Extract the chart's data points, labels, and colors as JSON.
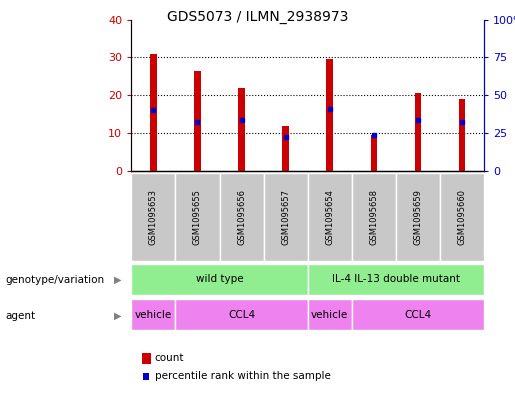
{
  "title": "GDS5073 / ILMN_2938973",
  "samples": [
    "GSM1095653",
    "GSM1095655",
    "GSM1095656",
    "GSM1095657",
    "GSM1095654",
    "GSM1095658",
    "GSM1095659",
    "GSM1095660"
  ],
  "counts": [
    31,
    26.5,
    22,
    12,
    29.5,
    9.5,
    20.5,
    19
  ],
  "percentiles": [
    16,
    13,
    13.5,
    9,
    16.5,
    9.5,
    13.5,
    13
  ],
  "count_color": "#cc0000",
  "percentile_color": "#0000cc",
  "ylim_left": [
    0,
    40
  ],
  "ylim_right": [
    0,
    100
  ],
  "yticks_left": [
    0,
    10,
    20,
    30,
    40
  ],
  "yticks_right": [
    0,
    25,
    50,
    75,
    100
  ],
  "ytick_labels_right": [
    "0",
    "25",
    "50",
    "75",
    "100%"
  ],
  "bar_width": 0.15,
  "legend_count_label": "count",
  "legend_percentile_label": "percentile rank within the sample",
  "genotype_label": "genotype/variation",
  "agent_label": "agent",
  "sample_bg_color": "#c8c8c8",
  "genotype_color": "#90ee90",
  "agent_color": "#ee82ee",
  "plot_bg_color": "#ffffff"
}
